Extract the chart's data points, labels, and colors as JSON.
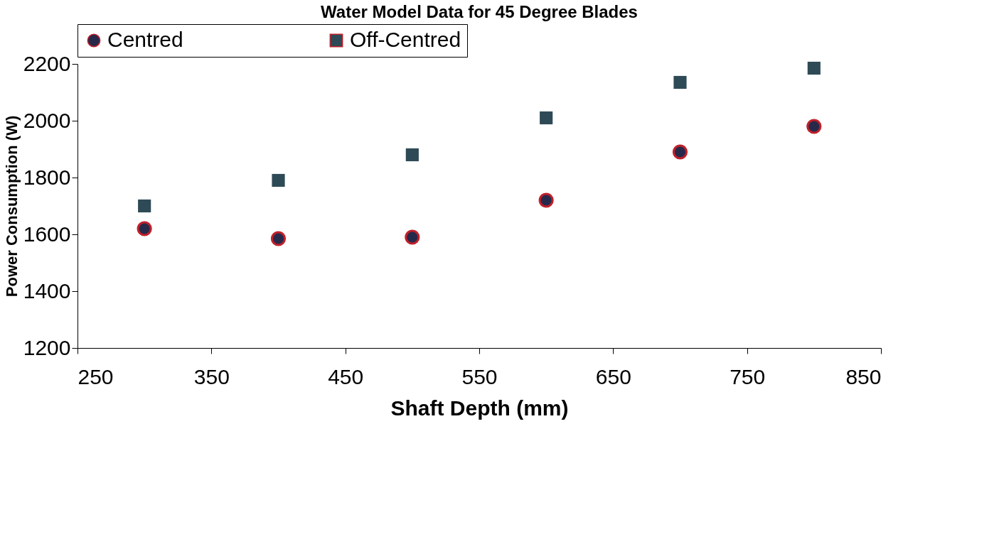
{
  "chart_data": {
    "type": "scatter",
    "title": "Water Model Data for 45 Degree Blades",
    "xlabel": "Shaft Depth (mm)",
    "ylabel": "Power Consumption (W)",
    "x": [
      300,
      400,
      500,
      600,
      700,
      800
    ],
    "series": [
      {
        "name": "Centred",
        "color": "#27294a",
        "marker": "circle",
        "values": [
          1620,
          1585,
          1590,
          1720,
          1890,
          1980
        ]
      },
      {
        "name": "Off-Centred",
        "color": "#2e4a56",
        "marker": "square",
        "values": [
          1700,
          1790,
          1880,
          2010,
          2135,
          2185
        ]
      }
    ],
    "xlim": [
      250,
      850
    ],
    "xticks": [
      250,
      350,
      450,
      550,
      650,
      750,
      850
    ],
    "ylim": [
      1200,
      2200
    ],
    "yticks": [
      1200,
      1400,
      1600,
      1800,
      2000,
      2200
    ],
    "grid": false,
    "legend": "top"
  }
}
